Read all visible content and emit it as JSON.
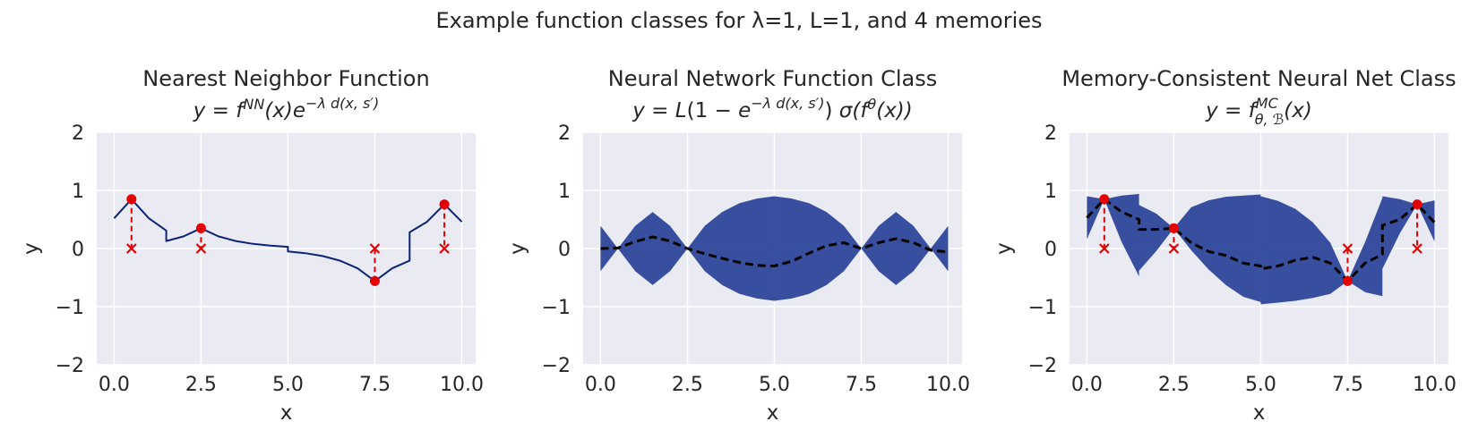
{
  "figure": {
    "title": "Example function classes for λ=1, L=1, and 4 memories"
  },
  "colors": {
    "axes_bg": "#EAEAF2",
    "grid": "#FFFFFF",
    "band": "#2E479A",
    "nn_line": "#0B2378",
    "memory": "#E30000",
    "mean_line": "#000000"
  },
  "chart_data": [
    {
      "type": "line",
      "title": "Nearest Neighbor Function",
      "subtitle": "y = f^NN(x) e^{-λ d(x, s′)}",
      "xlabel": "x",
      "ylabel": "y",
      "xlim": [
        -0.5,
        10.4
      ],
      "ylim": [
        -2,
        2
      ],
      "xticks": [
        "0.0",
        "2.5",
        "5.0",
        "7.5",
        "10.0"
      ],
      "yticks": [
        "−2",
        "−1",
        "0",
        "1",
        "2"
      ],
      "grid": true,
      "memories": [
        {
          "x": 0.5,
          "y": 0.85
        },
        {
          "x": 2.5,
          "y": 0.35
        },
        {
          "x": 7.5,
          "y": -0.56
        },
        {
          "x": 9.5,
          "y": 0.76
        }
      ],
      "series": [
        {
          "x": [
            0,
            0.5,
            1.0,
            1.5,
            1.5,
            2.0,
            2.5,
            3.0,
            3.5,
            4.0,
            4.5,
            5.0,
            5.0,
            5.5,
            6.0,
            6.5,
            7.0,
            7.5,
            8.0,
            8.5,
            8.5,
            9.0,
            9.5,
            10.0
          ],
          "y": [
            0.52,
            0.85,
            0.52,
            0.31,
            0.13,
            0.21,
            0.35,
            0.21,
            0.13,
            0.08,
            0.05,
            0.03,
            -0.05,
            -0.08,
            -0.13,
            -0.21,
            -0.34,
            -0.56,
            -0.34,
            -0.21,
            0.28,
            0.46,
            0.76,
            0.46
          ]
        }
      ]
    },
    {
      "type": "area",
      "title": "Neural Network Function Class",
      "subtitle": "y = L(1 − e^{-λ d(x, s′)}) σ(f^θ(x))",
      "xlabel": "x",
      "ylabel": "y",
      "xlim": [
        -0.5,
        10.4
      ],
      "ylim": [
        -2,
        2
      ],
      "xticks": [
        "0.0",
        "2.5",
        "5.0",
        "7.5",
        "10.0"
      ],
      "yticks": [
        "−2",
        "−1",
        "0",
        "1",
        "2"
      ],
      "grid": true,
      "band": {
        "x": [
          0,
          0.5,
          1.0,
          1.5,
          2.0,
          2.5,
          3.0,
          3.5,
          4.0,
          4.5,
          5.0,
          5.5,
          6.0,
          6.5,
          7.0,
          7.5,
          8.0,
          8.5,
          9.0,
          9.5,
          10.0
        ],
        "upper": [
          0.39,
          0.0,
          0.39,
          0.63,
          0.39,
          0.0,
          0.39,
          0.63,
          0.78,
          0.86,
          0.9,
          0.86,
          0.78,
          0.63,
          0.39,
          0.0,
          0.39,
          0.63,
          0.39,
          0.0,
          0.39
        ],
        "lower": [
          -0.39,
          0.0,
          -0.39,
          -0.63,
          -0.39,
          0.0,
          -0.39,
          -0.63,
          -0.78,
          -0.86,
          -0.9,
          -0.86,
          -0.78,
          -0.63,
          -0.39,
          0.0,
          -0.39,
          -0.63,
          -0.39,
          0.0,
          -0.39
        ]
      },
      "series": [
        {
          "x": [
            0,
            0.5,
            1.0,
            1.5,
            2.0,
            2.5,
            3.0,
            3.5,
            4.0,
            4.5,
            5.0,
            5.5,
            6.0,
            6.5,
            7.0,
            7.5,
            8.0,
            8.5,
            9.0,
            9.5,
            10.0
          ],
          "y": [
            0.0,
            0.01,
            0.12,
            0.2,
            0.13,
            0.0,
            -0.09,
            -0.17,
            -0.24,
            -0.29,
            -0.3,
            -0.22,
            -0.08,
            0.05,
            0.1,
            0.0,
            0.1,
            0.17,
            0.1,
            -0.03,
            -0.06
          ]
        }
      ]
    },
    {
      "type": "area",
      "title": "Memory-Consistent Neural Net Class",
      "subtitle": "y = f^MC_{θ, ℬ}(x)",
      "xlabel": "x",
      "ylabel": "y",
      "xlim": [
        -0.5,
        10.4
      ],
      "ylim": [
        -2,
        2
      ],
      "xticks": [
        "0.0",
        "2.5",
        "5.0",
        "7.5",
        "10.0"
      ],
      "yticks": [
        "−2",
        "−1",
        "0",
        "1",
        "2"
      ],
      "grid": true,
      "memories": [
        {
          "x": 0.5,
          "y": 0.85
        },
        {
          "x": 2.5,
          "y": 0.35
        },
        {
          "x": 7.5,
          "y": -0.56
        },
        {
          "x": 9.5,
          "y": 0.76
        }
      ],
      "band": {
        "x": [
          0,
          0.5,
          1.0,
          1.5,
          1.5,
          2.0,
          2.5,
          3.0,
          3.5,
          4.0,
          4.5,
          5.0,
          5.0,
          5.5,
          6.0,
          6.5,
          7.0,
          7.5,
          8.0,
          8.5,
          8.5,
          9.0,
          9.5,
          10.0
        ],
        "upper": [
          0.9,
          0.85,
          0.91,
          0.94,
          0.75,
          0.6,
          0.35,
          0.71,
          0.83,
          0.89,
          0.91,
          0.93,
          0.9,
          0.82,
          0.68,
          0.45,
          0.1,
          -0.56,
          0.11,
          0.87,
          0.9,
          0.85,
          0.76,
          0.83
        ],
        "lower": [
          0.16,
          0.85,
          0.11,
          -0.48,
          -0.38,
          -0.04,
          0.35,
          -0.03,
          -0.36,
          -0.63,
          -0.83,
          -0.92,
          -0.96,
          -0.93,
          -0.9,
          -0.85,
          -0.78,
          -0.56,
          -0.75,
          -0.82,
          -0.35,
          0.26,
          0.76,
          0.12
        ]
      },
      "series": [
        {
          "x": [
            0,
            0.5,
            1.0,
            1.5,
            1.5,
            2.0,
            2.5,
            3.0,
            3.5,
            4.0,
            4.5,
            5.0,
            5.0,
            5.5,
            6.0,
            6.5,
            7.0,
            7.5,
            8.0,
            8.5,
            8.5,
            9.0,
            9.5,
            10.0
          ],
          "y": [
            0.53,
            0.85,
            0.63,
            0.5,
            0.33,
            0.33,
            0.35,
            0.1,
            -0.05,
            -0.12,
            -0.25,
            -0.3,
            -0.35,
            -0.3,
            -0.2,
            -0.15,
            -0.25,
            -0.56,
            -0.25,
            -0.1,
            0.4,
            0.5,
            0.76,
            0.45
          ]
        }
      ]
    }
  ]
}
